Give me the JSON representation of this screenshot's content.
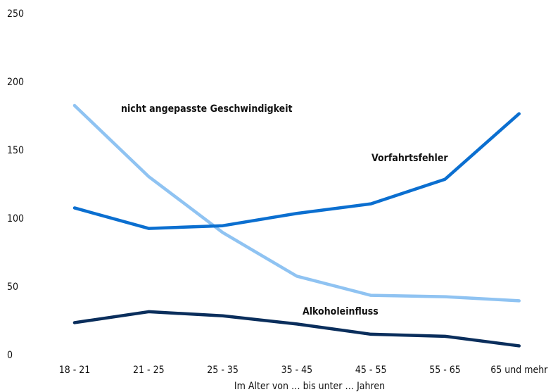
{
  "chart_data": {
    "type": "line",
    "categories": [
      "18 - 21",
      "21 - 25",
      "25 - 35",
      "35 - 45",
      "45 - 55",
      "55 - 65",
      "65 und mehr"
    ],
    "series": [
      {
        "name": "nicht angepasste Geschwindigkeit",
        "color": "#8fc3f2",
        "values": [
          183,
          131,
          90,
          58,
          44,
          43,
          40
        ]
      },
      {
        "name": "Vorfahrtsfehler",
        "color": "#0b6fd0",
        "values": [
          108,
          93,
          95,
          104,
          111,
          129,
          177
        ]
      },
      {
        "name": "Alkoholeinfluss",
        "color": "#0a2e5c",
        "values": [
          24,
          32,
          29,
          23,
          15.5,
          14,
          7
        ]
      }
    ],
    "x_label": "Im Alter von … bis unter … Jahren",
    "ylim": [
      0,
      250
    ],
    "yticks": [
      0,
      50,
      100,
      150,
      200,
      250
    ],
    "grid": false
  }
}
